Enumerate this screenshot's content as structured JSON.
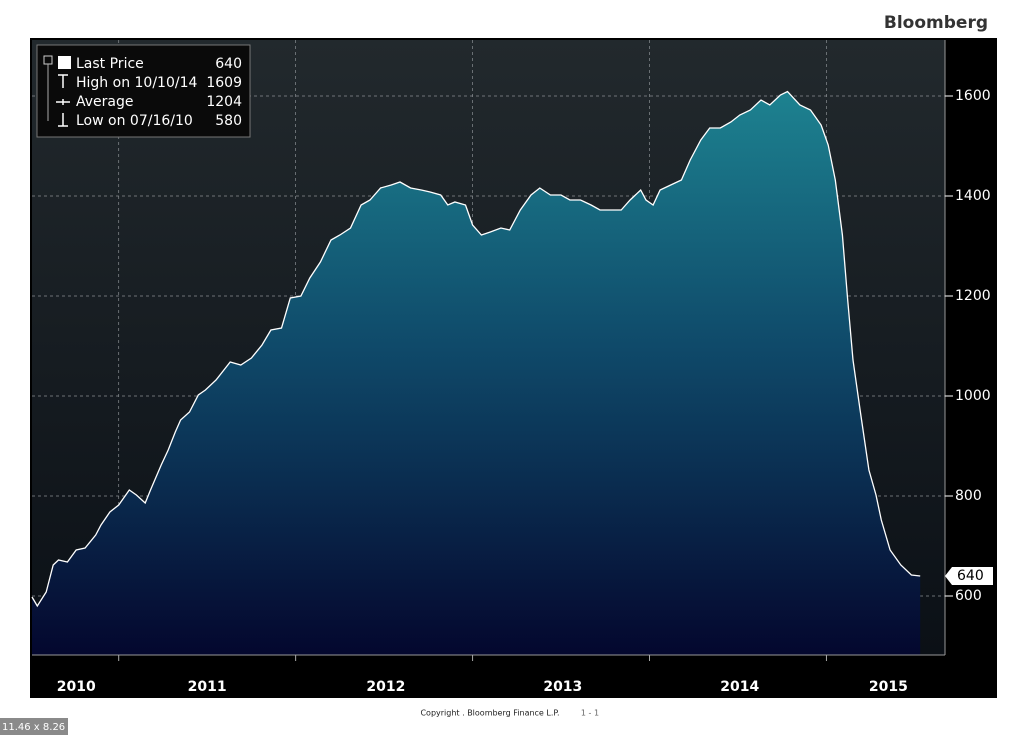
{
  "brand": "Bloomberg",
  "footer": {
    "copyright": "Copyright . Bloomberg Finance L.P.",
    "page": "1 - 1",
    "size": "11.46 x 8.26 in"
  },
  "chart_data": {
    "type": "area",
    "legend": [
      {
        "label": "Last Price",
        "value": 640
      },
      {
        "label": "High on 10/10/14",
        "value": 1609
      },
      {
        "label": "Average",
        "value": 1204
      },
      {
        "label": "Low on 07/16/10",
        "value": 580
      }
    ],
    "x": [
      2010.51,
      2010.54,
      2010.59,
      2010.63,
      2010.66,
      2010.71,
      2010.76,
      2010.81,
      2010.87,
      2010.9,
      2010.95,
      2011.0,
      2011.06,
      2011.1,
      2011.15,
      2011.18,
      2011.24,
      2011.28,
      2011.32,
      2011.35,
      2011.4,
      2011.45,
      2011.49,
      2011.55,
      2011.63,
      2011.69,
      2011.75,
      2011.81,
      2011.86,
      2011.92,
      2011.97,
      2012.03,
      2012.08,
      2012.14,
      2012.2,
      2012.25,
      2012.31,
      2012.37,
      2012.42,
      2012.48,
      2012.54,
      2012.59,
      2012.65,
      2012.71,
      2012.76,
      2012.82,
      2012.86,
      2012.9,
      2012.96,
      2013.0,
      2013.05,
      2013.1,
      2013.16,
      2013.21,
      2013.27,
      2013.33,
      2013.38,
      2013.44,
      2013.5,
      2013.55,
      2013.61,
      2013.67,
      2013.72,
      2013.78,
      2013.84,
      2013.89,
      2013.95,
      2013.98,
      2014.02,
      2014.06,
      2014.12,
      2014.18,
      2014.23,
      2014.29,
      2014.34,
      2014.4,
      2014.46,
      2014.51,
      2014.57,
      2014.63,
      2014.68,
      2014.74,
      2014.78,
      2014.85,
      2014.91,
      2014.97,
      2015.01,
      2015.05,
      2015.09,
      2015.12,
      2015.15,
      2015.19,
      2015.24,
      2015.28,
      2015.31,
      2015.36,
      2015.42,
      2015.48,
      2015.53
    ],
    "series": [
      {
        "name": "Last Price",
        "color": "#ffffff",
        "values": [
          598,
          580,
          608,
          662,
          672,
          668,
          692,
          696,
          722,
          742,
          768,
          782,
          812,
          802,
          786,
          812,
          862,
          892,
          928,
          952,
          968,
          1002,
          1012,
          1032,
          1068,
          1062,
          1076,
          1102,
          1132,
          1136,
          1196,
          1200,
          1236,
          1268,
          1312,
          1322,
          1336,
          1382,
          1392,
          1416,
          1422,
          1428,
          1416,
          1412,
          1408,
          1402,
          1382,
          1388,
          1382,
          1342,
          1322,
          1328,
          1336,
          1332,
          1372,
          1402,
          1416,
          1402,
          1402,
          1392,
          1392,
          1382,
          1372,
          1372,
          1372,
          1392,
          1412,
          1392,
          1382,
          1412,
          1422,
          1432,
          1472,
          1512,
          1536,
          1536,
          1548,
          1562,
          1572,
          1592,
          1582,
          1602,
          1609,
          1582,
          1572,
          1542,
          1502,
          1432,
          1322,
          1192,
          1072,
          972,
          852,
          802,
          752,
          692,
          662,
          642,
          640
        ]
      }
    ],
    "xlim": [
      2010.51,
      2015.67
    ],
    "xgrid": [
      2011,
      2012,
      2013,
      2014,
      2015
    ],
    "xticks": [
      {
        "value": 2010.76,
        "label": "2010"
      },
      {
        "value": 2011.5,
        "label": "2011"
      },
      {
        "value": 2012.51,
        "label": "2012"
      },
      {
        "value": 2013.51,
        "label": "2013"
      },
      {
        "value": 2014.51,
        "label": "2014"
      },
      {
        "value": 2015.35,
        "label": "2015"
      }
    ],
    "ylim": [
      482,
      1712
    ],
    "yticks": [
      600,
      800,
      1000,
      1200,
      1400,
      1600
    ],
    "grid": true
  }
}
